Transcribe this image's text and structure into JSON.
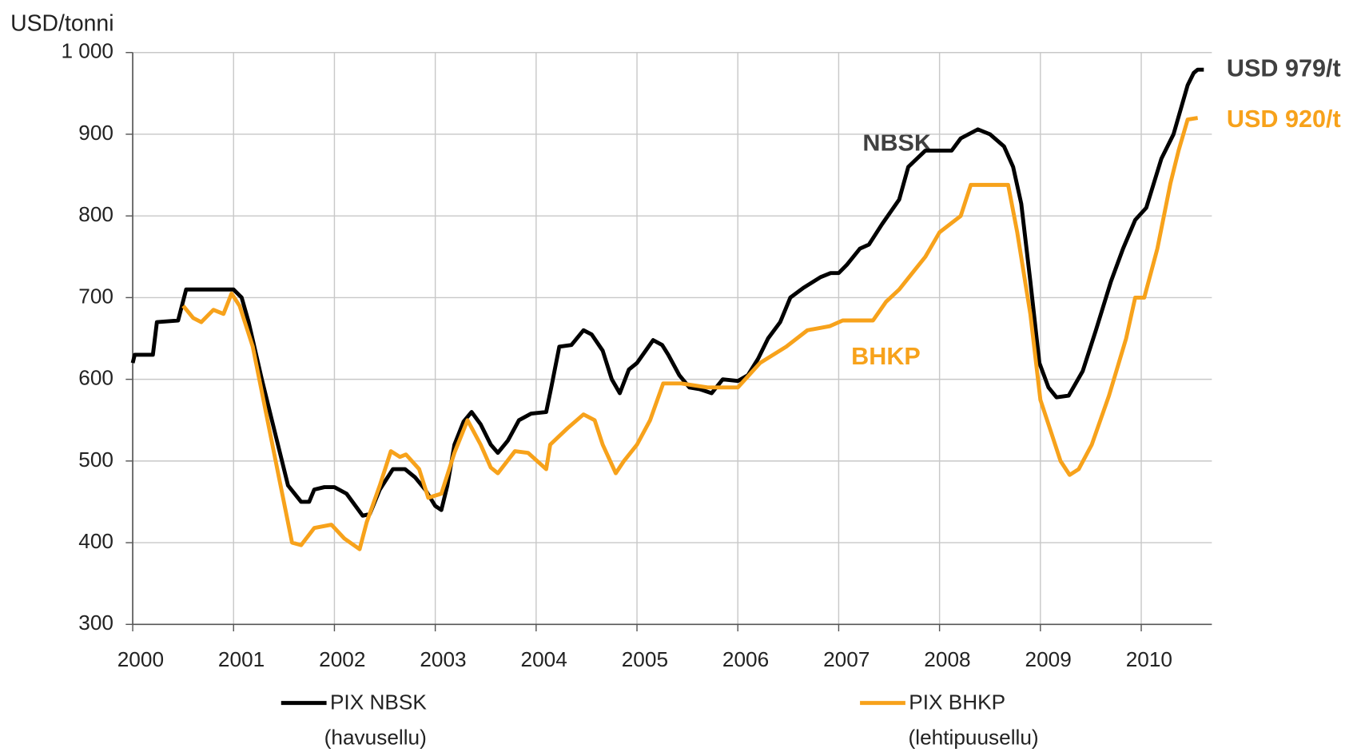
{
  "chart_data": {
    "type": "line",
    "y_axis_label": "USD/tonni",
    "annotations": [
      "NBSK",
      "BHKP"
    ],
    "xlim": [
      2000,
      2010.7
    ],
    "xticks": [
      2000,
      2001,
      2002,
      2003,
      2004,
      2005,
      2006,
      2007,
      2008,
      2009,
      2010
    ],
    "ylim": [
      300,
      1000
    ],
    "yticks": [
      300,
      400,
      500,
      600,
      700,
      800,
      900,
      {
        "value": 1000,
        "label": "1 000"
      }
    ],
    "grid": true,
    "legend": "bottom",
    "series": [
      {
        "name": "PIX NBSK",
        "description": "(havusellu)",
        "color": "#000000",
        "end_label": "USD 979/t",
        "end_label_color": "#404040",
        "x": [
          2000.0,
          2000.02,
          2000.2,
          2000.24,
          2000.45,
          2000.53,
          2001.0,
          2001.08,
          2001.15,
          2001.28,
          2001.4,
          2001.54,
          2001.67,
          2001.75,
          2001.8,
          2001.9,
          2002.0,
          2002.12,
          2002.28,
          2002.35,
          2002.45,
          2002.58,
          2002.7,
          2002.8,
          2002.9,
          2003.0,
          2003.06,
          2003.12,
          2003.19,
          2003.28,
          2003.36,
          2003.45,
          2003.55,
          2003.62,
          2003.72,
          2003.83,
          2003.95,
          2004.1,
          2004.15,
          2004.23,
          2004.35,
          2004.47,
          2004.55,
          2004.66,
          2004.75,
          2004.83,
          2004.92,
          2005.0,
          2005.16,
          2005.25,
          2005.31,
          2005.42,
          2005.52,
          2005.62,
          2005.74,
          2005.85,
          2006.0,
          2006.1,
          2006.2,
          2006.3,
          2006.42,
          2006.52,
          2006.65,
          2006.82,
          2006.92,
          2007.0,
          2007.08,
          2007.21,
          2007.3,
          2007.43,
          2007.6,
          2007.69,
          2007.86,
          2008.0,
          2008.12,
          2008.21,
          2008.38,
          2008.5,
          2008.64,
          2008.73,
          2008.81,
          2008.9,
          2008.99,
          2009.08,
          2009.16,
          2009.28,
          2009.42,
          2009.55,
          2009.7,
          2009.82,
          2009.94,
          2010.05,
          2010.2,
          2010.32,
          2010.46,
          2010.52,
          2010.56,
          2010.62
        ],
        "y": [
          620,
          630,
          630,
          670,
          672,
          710,
          710,
          700,
          670,
          600,
          540,
          470,
          450,
          450,
          465,
          468,
          468,
          460,
          433,
          435,
          465,
          490,
          490,
          480,
          465,
          445,
          440,
          470,
          520,
          548,
          560,
          545,
          520,
          510,
          525,
          550,
          558,
          560,
          590,
          640,
          642,
          660,
          655,
          635,
          600,
          583,
          612,
          620,
          648,
          642,
          630,
          605,
          590,
          588,
          583,
          600,
          598,
          605,
          625,
          650,
          670,
          700,
          712,
          725,
          730,
          730,
          740,
          760,
          765,
          790,
          820,
          860,
          880,
          880,
          880,
          895,
          906,
          900,
          885,
          860,
          815,
          720,
          620,
          590,
          578,
          580,
          610,
          660,
          720,
          760,
          795,
          810,
          870,
          900,
          960,
          975,
          979,
          979
        ]
      },
      {
        "name": "PIX BHKP",
        "description": "(lehtipuusellu)",
        "color": "#f7a21b",
        "end_label": "USD 920/t",
        "end_label_color": "#f7a21b",
        "x": [
          2000.5,
          2000.6,
          2000.68,
          2000.8,
          2000.9,
          2000.98,
          2001.06,
          2001.19,
          2001.32,
          2001.45,
          2001.58,
          2001.67,
          2001.8,
          2001.97,
          2002.1,
          2002.25,
          2002.32,
          2002.45,
          2002.56,
          2002.65,
          2002.71,
          2002.84,
          2002.93,
          2003.06,
          2003.19,
          2003.32,
          2003.45,
          2003.55,
          2003.62,
          2003.79,
          2003.92,
          2004.1,
          2004.14,
          2004.31,
          2004.47,
          2004.58,
          2004.66,
          2004.79,
          2004.87,
          2005.0,
          2005.13,
          2005.26,
          2005.44,
          2005.7,
          2006.0,
          2006.22,
          2006.48,
          2006.69,
          2006.91,
          2007.04,
          2007.34,
          2007.47,
          2007.6,
          2007.73,
          2007.86,
          2008.0,
          2008.21,
          2008.31,
          2008.68,
          2008.77,
          2008.9,
          2009.0,
          2009.12,
          2009.2,
          2009.29,
          2009.38,
          2009.51,
          2009.68,
          2009.85,
          2009.94,
          2010.03,
          2010.16,
          2010.29,
          2010.37,
          2010.46,
          2010.56
        ],
        "y": [
          690,
          675,
          670,
          685,
          680,
          705,
          690,
          640,
          560,
          480,
          400,
          397,
          418,
          422,
          405,
          392,
          425,
          470,
          512,
          505,
          508,
          490,
          455,
          460,
          510,
          550,
          520,
          492,
          485,
          512,
          510,
          490,
          520,
          540,
          557,
          550,
          520,
          485,
          500,
          520,
          550,
          595,
          595,
          590,
          590,
          620,
          640,
          660,
          665,
          672,
          672,
          695,
          710,
          730,
          750,
          780,
          800,
          838,
          838,
          780,
          680,
          575,
          530,
          500,
          483,
          490,
          520,
          580,
          650,
          700,
          700,
          760,
          840,
          880,
          918,
          920
        ]
      }
    ]
  }
}
